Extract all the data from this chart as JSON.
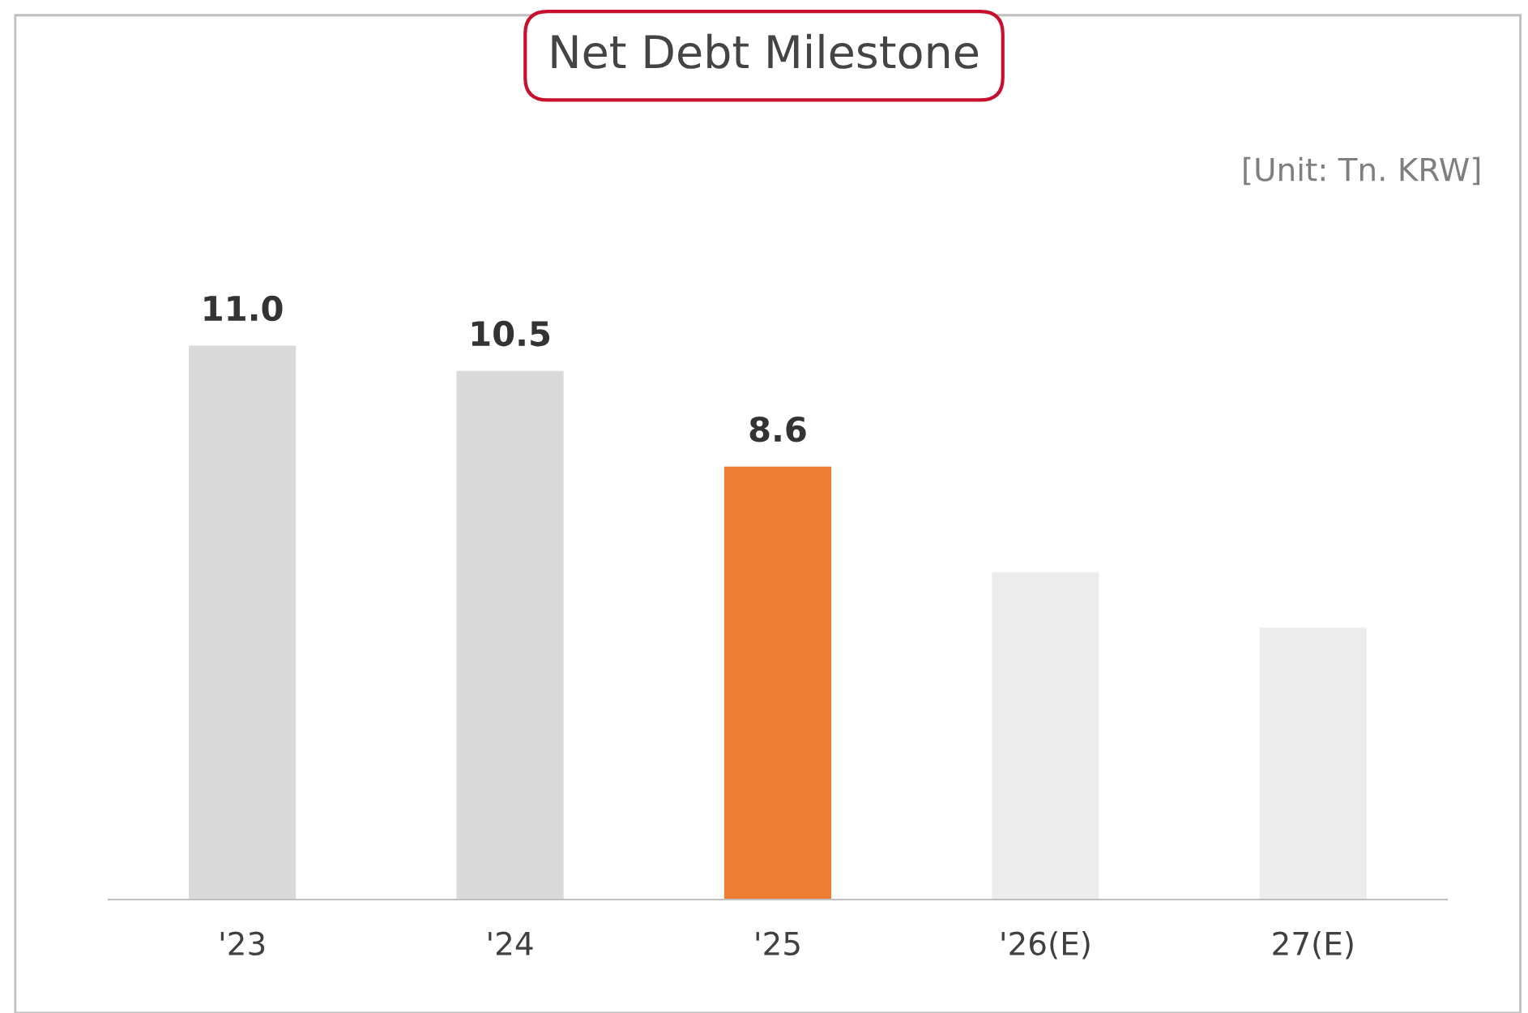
{
  "chart_data": {
    "type": "bar",
    "title": "Net Debt Milestone",
    "categories": [
      "'23",
      "'24",
      "'25",
      "'26(E)",
      "27(E)"
    ],
    "values": [
      11.0,
      10.5,
      8.6,
      6.5,
      5.4
    ],
    "colors": [
      "#d9d9d9",
      "#d9d9d9",
      "#ed7d31",
      "#ececec",
      "#ececec"
    ],
    "value_labels": [
      "11.0",
      "10.5",
      "8.6",
      null,
      null
    ],
    "annotations": [
      "[Unit: Tn. KRW]"
    ],
    "grid": false,
    "legend": false
  }
}
